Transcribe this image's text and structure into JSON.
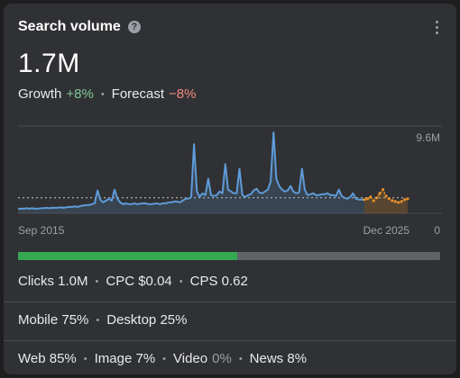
{
  "header": {
    "title": "Search volume",
    "help_icon": "help-circle-icon",
    "menu_icon": "more-vert-icon"
  },
  "volume": "1.7M",
  "growth": {
    "growth_label": "Growth",
    "growth_value": "+8%",
    "forecast_label": "Forecast",
    "forecast_value": "−8%"
  },
  "colors": {
    "positive": "#81c995",
    "negative": "#f28b82",
    "history_line": "#5e9bd8",
    "forecast_line": "#e8912a",
    "progress_fill": "#34a853"
  },
  "chart_data": {
    "type": "line",
    "x_start_label": "Sep 2015",
    "x_end_label": "Dec 2025",
    "y_top_label": "9.6M",
    "y_bottom_label": "0",
    "ylim": [
      0,
      9.6
    ],
    "average": 1.7,
    "series": [
      {
        "values": [
          0.5,
          0.5,
          0.5,
          0.55,
          0.5,
          0.55,
          0.5,
          0.5,
          0.55,
          0.55,
          0.6,
          0.55,
          0.6,
          0.6,
          0.6,
          0.65,
          0.6,
          0.65,
          0.7,
          0.7,
          0.75,
          0.7,
          0.8,
          0.85,
          0.9,
          0.9,
          1.0,
          1.1,
          2.5,
          1.5,
          1.2,
          1.4,
          1.6,
          1.4,
          2.6,
          1.6,
          1.2,
          1.0,
          1.1,
          1.0,
          1.0,
          1.1,
          1.0,
          1.05,
          1.1,
          1.1,
          1.0,
          1.0,
          1.05,
          1.1,
          1.0,
          1.1,
          1.1,
          1.2,
          1.2,
          1.3,
          1.3,
          1.2,
          1.4,
          1.6,
          1.6,
          1.8,
          7.6,
          2.4,
          1.8,
          2.2,
          2.0,
          3.8,
          2.0,
          1.9,
          2.0,
          2.4,
          2.2,
          5.4,
          2.6,
          2.4,
          2.2,
          2.2,
          4.9,
          2.0,
          1.8,
          2.0,
          2.1,
          2.5,
          2.7,
          2.3,
          2.2,
          2.4,
          2.6,
          3.5,
          8.9,
          3.8,
          3.0,
          2.6,
          2.4,
          2.5,
          3.0,
          2.4,
          2.2,
          2.3,
          4.9,
          2.6,
          2.0,
          2.1,
          2.2,
          2.0,
          2.0,
          2.1,
          2.1,
          2.2,
          2.0,
          2.0,
          1.9,
          2.6,
          1.9,
          1.7,
          1.6,
          1.8,
          2.2,
          1.6,
          1.5,
          1.5,
          1.5
        ]
      },
      {
        "values": [
          1.5,
          1.6,
          1.8,
          1.4,
          1.7,
          2.2,
          2.6,
          1.9,
          1.6,
          1.4,
          1.3,
          1.2,
          1.3,
          1.5,
          1.6
        ]
      }
    ]
  },
  "split": {
    "fill_fraction": 0.52
  },
  "stats": {
    "clicks": "Clicks 1.0M",
    "cpc": "CPC $0.04",
    "cps": "CPS 0.62",
    "mobile": "Mobile 75%",
    "desktop": "Desktop 25%",
    "web": "Web 85%",
    "image": "Image 7%",
    "video_label": "Video",
    "video_value": "0%",
    "news": "News 8%",
    "separator": "•"
  }
}
